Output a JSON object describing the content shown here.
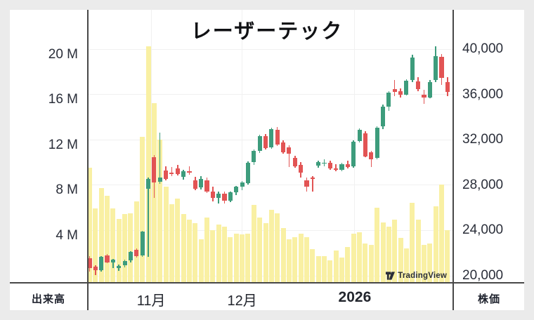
{
  "window": {
    "background": "#EBEBEB",
    "card_background": "#FFFFFF"
  },
  "header": {
    "title": "レーザーテック"
  },
  "axes": {
    "volume_axis_label": "出来高",
    "price_axis_label": "株価"
  },
  "watermark": {
    "brand": "TradingView"
  },
  "chart_data": {
    "type": "candlestick",
    "title": "レーザーテック",
    "legend_position": "none",
    "grid": true,
    "volume_axis": {
      "unit": "M",
      "side": "left",
      "ticks": [
        {
          "label": "20 M",
          "value": 20
        },
        {
          "label": "16 M",
          "value": 16
        },
        {
          "label": "12 M",
          "value": 12
        },
        {
          "label": "8 M",
          "value": 8
        },
        {
          "label": "4 M",
          "value": 4
        }
      ]
    },
    "price_axis": {
      "side": "right",
      "visible_range": [
        20000,
        40600
      ],
      "ticks": [
        {
          "label": "40,000",
          "value": 40000
        },
        {
          "label": "36,000",
          "value": 36000
        },
        {
          "label": "32,000",
          "value": 32000
        },
        {
          "label": "28,000",
          "value": 28000
        },
        {
          "label": "24,000",
          "value": 24000
        },
        {
          "label": "20,000",
          "value": 20000
        }
      ]
    },
    "x_axis": {
      "ticks": [
        {
          "label": "11月",
          "at_index": 10.5,
          "bold": false
        },
        {
          "label": "12月",
          "at_index": 26.0,
          "bold": false
        },
        {
          "label": "2026",
          "at_index": 45.2,
          "bold": true
        }
      ]
    },
    "colors": {
      "up": "#3D9C7C",
      "down": "#E25454",
      "volume": "#F9F0A3",
      "grid": "#F1F1F1",
      "axis": "#474747",
      "text": "#2A2E39"
    },
    "candles_format": [
      "open",
      "high",
      "low",
      "close",
      "volume_millions"
    ],
    "candles": [
      [
        21550,
        21750,
        20350,
        20700,
        10.0
      ],
      [
        20800,
        20950,
        20050,
        20500,
        6.4
      ],
      [
        20500,
        21750,
        20400,
        21700,
        8.2
      ],
      [
        21800,
        21950,
        21100,
        21200,
        7.5
      ],
      [
        21200,
        21500,
        20650,
        21400,
        6.4
      ],
      [
        20700,
        21000,
        20450,
        20880,
        5.5
      ],
      [
        20900,
        21450,
        20750,
        21300,
        5.9
      ],
      [
        21350,
        22150,
        21150,
        22100,
        6.0
      ],
      [
        22300,
        22400,
        21600,
        21750,
        7.0
      ],
      [
        21800,
        23950,
        21700,
        23900,
        12.7
      ],
      [
        27700,
        28650,
        21650,
        28550,
        20.7
      ],
      [
        30450,
        30650,
        26900,
        28250,
        15.7
      ],
      [
        28300,
        32650,
        28100,
        28650,
        12.5
      ],
      [
        29300,
        29650,
        28400,
        28550,
        8.3
      ],
      [
        29100,
        29600,
        28800,
        29050,
        6.8
      ],
      [
        29450,
        29800,
        28850,
        28950,
        7.3
      ],
      [
        28750,
        29350,
        28500,
        29250,
        5.9
      ],
      [
        29250,
        29650,
        28900,
        29100,
        5.4
      ],
      [
        28450,
        28750,
        27550,
        27700,
        5.1
      ],
      [
        27800,
        28800,
        27600,
        28550,
        3.7
      ],
      [
        28450,
        28650,
        27300,
        27450,
        5.6
      ],
      [
        27450,
        27850,
        26550,
        26850,
        4.5
      ],
      [
        26900,
        27450,
        26350,
        27250,
        5.0
      ],
      [
        27250,
        27450,
        26400,
        26600,
        4.8
      ],
      [
        26600,
        27450,
        26500,
        27350,
        3.9
      ],
      [
        27350,
        27950,
        27150,
        27850,
        4.2
      ],
      [
        27850,
        28350,
        27550,
        28250,
        4.1
      ],
      [
        28200,
        30100,
        28050,
        30000,
        4.2
      ],
      [
        30000,
        31150,
        29800,
        31000,
        6.7
      ],
      [
        31000,
        32450,
        30850,
        32350,
        5.6
      ],
      [
        32350,
        32500,
        31150,
        31250,
        5.1
      ],
      [
        31300,
        33050,
        31200,
        32950,
        6.3
      ],
      [
        32900,
        33100,
        31450,
        31550,
        6.0
      ],
      [
        31750,
        31950,
        30800,
        30900,
        4.7
      ],
      [
        31350,
        31500,
        29600,
        30750,
        3.7
      ],
      [
        30400,
        30600,
        29550,
        29650,
        3.9
      ],
      [
        29800,
        30050,
        28650,
        29100,
        4.2
      ],
      [
        28400,
        28650,
        27400,
        27850,
        3.9
      ],
      [
        28650,
        28800,
        27450,
        28550,
        2.8
      ],
      [
        29750,
        30150,
        29550,
        30050,
        2.2
      ],
      [
        29900,
        30250,
        29650,
        30000,
        2.2
      ],
      [
        29950,
        30150,
        29350,
        29500,
        1.8
      ],
      [
        29500,
        29850,
        29200,
        29350,
        2.7
      ],
      [
        29350,
        29950,
        29250,
        29850,
        2.1
      ],
      [
        29850,
        30150,
        29450,
        29600,
        3.0
      ],
      [
        29650,
        31950,
        29550,
        31850,
        4.2
      ],
      [
        31900,
        33000,
        31750,
        32900,
        4.3
      ],
      [
        32600,
        32750,
        30450,
        30550,
        3.3
      ],
      [
        30900,
        31000,
        29600,
        30300,
        3.2
      ],
      [
        30400,
        33200,
        30250,
        33050,
        6.5
      ],
      [
        33200,
        35100,
        32950,
        34950,
        5.2
      ],
      [
        34950,
        36300,
        34550,
        36150,
        4.8
      ],
      [
        36500,
        37250,
        35850,
        36250,
        5.4
      ],
      [
        36300,
        36550,
        35750,
        35950,
        3.8
      ],
      [
        36000,
        37350,
        35900,
        37200,
        2.9
      ],
      [
        37300,
        39500,
        37100,
        39250,
        6.9
      ],
      [
        37150,
        37500,
        36300,
        36500,
        5.4
      ],
      [
        36000,
        36400,
        35150,
        35700,
        3.2
      ],
      [
        35750,
        37250,
        35650,
        37100,
        3.3
      ],
      [
        37300,
        40250,
        37100,
        39350,
        6.6
      ],
      [
        39300,
        39550,
        36850,
        37450,
        8.5
      ],
      [
        37100,
        37500,
        35850,
        36250,
        4.5
      ]
    ]
  }
}
